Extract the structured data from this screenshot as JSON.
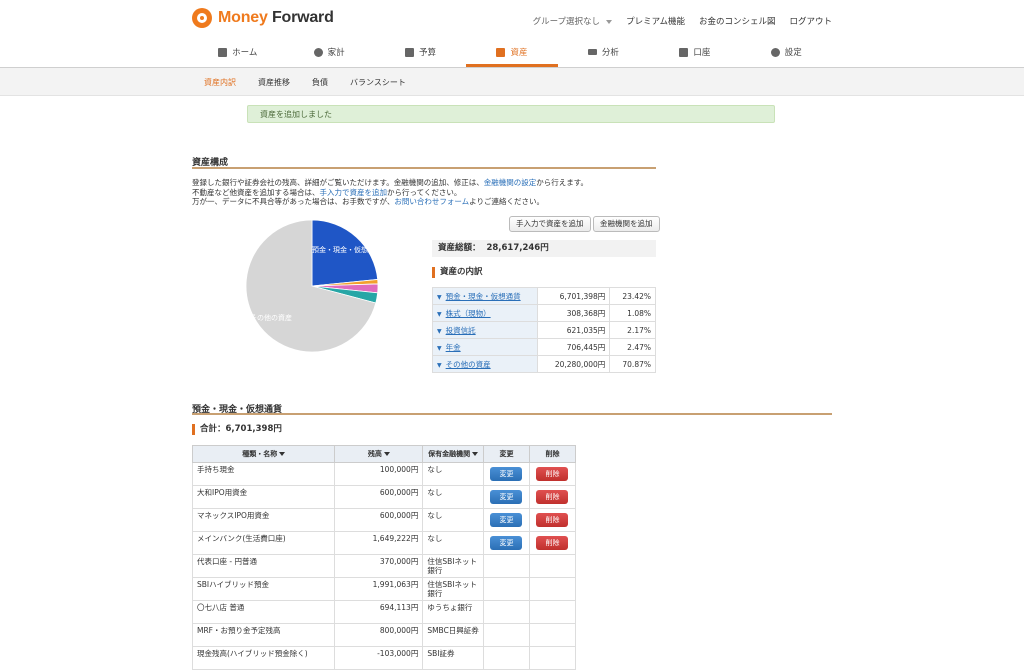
{
  "header": {
    "logo_text_a": "Money",
    "logo_text_b": "Forward",
    "group_select": "グループ選択なし",
    "links": [
      "プレミアム機能",
      "お金のコンシェル図",
      "ログアウト"
    ]
  },
  "nav": {
    "items": [
      {
        "label": "ホーム",
        "icon": "home-icon"
      },
      {
        "label": "家計",
        "icon": "household-icon"
      },
      {
        "label": "予算",
        "icon": "budget-icon"
      },
      {
        "label": "資産",
        "icon": "assets-icon",
        "active": true
      },
      {
        "label": "分析",
        "icon": "analysis-icon"
      },
      {
        "label": "口座",
        "icon": "account-icon"
      },
      {
        "label": "設定",
        "icon": "settings-icon"
      }
    ]
  },
  "subnav": [
    "資産内訳",
    "資産推移",
    "負債",
    "バランスシート"
  ],
  "notice": "資産を追加しました",
  "composition": {
    "title": "資産構成",
    "desc1_a": "登録した銀行や証券会社の残高、詳細がご覧いただけます。金融機関の追加、修正は、",
    "desc1_link": "金融機関の設定",
    "desc1_b": "から行えます。",
    "desc2_a": "不動産など他資産を追加する場合は、",
    "desc2_link": "手入力で資産を追加",
    "desc2_b": "から行ってください。",
    "desc3_a": "万が一、データに不具合等があった場合は、お手数ですが、",
    "desc3_link": "お問い合わせフォーム",
    "desc3_b": "よりご連絡ください。",
    "btn_manual": "手入力で資産を追加",
    "btn_institution": "金融機関を追加",
    "total_label": "資産総額：",
    "total_value": "28,617,246円",
    "breakdown_title": "資産の内訳",
    "pie_label_1": "預金・現金・仮想",
    "pie_label_2": "その他の資産",
    "colors": [
      "#1f56c6",
      "#f2a02e",
      "#e06bbd",
      "#e3d84f",
      "#27a6a6",
      "#d6d6d6"
    ]
  },
  "breakdown": [
    {
      "name": "預金・現金・仮想通貨",
      "amount": "6,701,398円",
      "pct": "23.42%"
    },
    {
      "name": "株式（現物）",
      "amount": "308,368円",
      "pct": "1.08%"
    },
    {
      "name": "投資信託",
      "amount": "621,035円",
      "pct": "2.17%"
    },
    {
      "name": "年金",
      "amount": "706,445円",
      "pct": "2.47%"
    },
    {
      "name": "その他の資産",
      "amount": "20,280,000円",
      "pct": "70.87%"
    }
  ],
  "deposits": {
    "title": "預金・現金・仮想通貨",
    "total": "合計：6,701,398円",
    "headers": [
      "種類・名称",
      "残高",
      "保有金融機関",
      "変更",
      "削除"
    ],
    "edit_label": "変更",
    "delete_label": "削除",
    "rows": [
      {
        "name": "手持ち現金",
        "amount": "100,000円",
        "inst": "なし",
        "editable": true
      },
      {
        "name": "大和IPO用資金",
        "amount": "600,000円",
        "inst": "なし",
        "editable": true
      },
      {
        "name": "マネックスIPO用資金",
        "amount": "600,000円",
        "inst": "なし",
        "editable": true
      },
      {
        "name": "メインバンク(生活費口座)",
        "amount": "1,649,222円",
        "inst": "なし",
        "editable": true
      },
      {
        "name": "代表口座 - 円普通",
        "amount": "370,000円",
        "inst": "住信SBIネット銀行",
        "editable": false
      },
      {
        "name": "SBIハイブリッド預金",
        "amount": "1,991,063円",
        "inst": "住信SBIネット銀行",
        "editable": false
      },
      {
        "name": "〇七八店 普通",
        "amount": "694,113円",
        "inst": "ゆうちょ銀行",
        "editable": false
      },
      {
        "name": "MRF・お預り金予定残高",
        "amount": "800,000円",
        "inst": "SMBC日興証券",
        "editable": false
      },
      {
        "name": "現金残高(ハイブリッド預金除く)",
        "amount": "-103,000円",
        "inst": "SBI証券",
        "editable": false
      }
    ]
  }
}
